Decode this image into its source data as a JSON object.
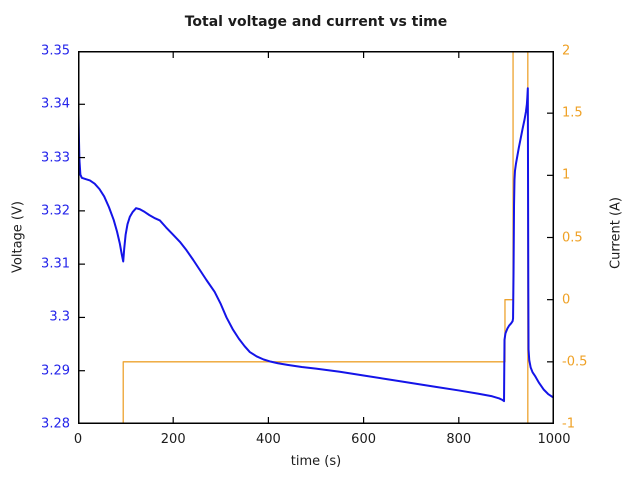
{
  "chart_data": {
    "type": "line",
    "title": "Total voltage and current vs time",
    "xlabel": "time (s)",
    "ylabel_left": "Voltage (V)",
    "ylabel_right": "Current (A)",
    "x_range": [
      0,
      1000
    ],
    "y_left_range": [
      3.28,
      3.35
    ],
    "y_right_range": [
      -1,
      2
    ],
    "grid": false,
    "legend": "none",
    "colors": {
      "voltage_line": "#1414e8",
      "voltage_labels": "#2424ea",
      "current_line": "#eda32f",
      "current_labels": "#efa125",
      "axis_frame": "#000000",
      "text": "#1c1c1c"
    },
    "x_ticks": [
      {
        "v": 0,
        "label": "0"
      },
      {
        "v": 200,
        "label": "200"
      },
      {
        "v": 400,
        "label": "400"
      },
      {
        "v": 600,
        "label": "600"
      },
      {
        "v": 800,
        "label": "800"
      },
      {
        "v": 1000,
        "label": "1000"
      }
    ],
    "y_left_ticks": [
      {
        "v": 3.35,
        "label": "3.35"
      },
      {
        "v": 3.34,
        "label": "3.34"
      },
      {
        "v": 3.33,
        "label": "3.33"
      },
      {
        "v": 3.32,
        "label": "3.32"
      },
      {
        "v": 3.31,
        "label": "3.31"
      },
      {
        "v": 3.3,
        "label": "3.3"
      },
      {
        "v": 3.29,
        "label": "3.29"
      },
      {
        "v": 3.28,
        "label": "3.28"
      }
    ],
    "y_right_ticks": [
      {
        "v": 2,
        "label": "2"
      },
      {
        "v": 1.5,
        "label": "1.5"
      },
      {
        "v": 1,
        "label": "1"
      },
      {
        "v": 0.5,
        "label": "0.5"
      },
      {
        "v": 0,
        "label": "0"
      },
      {
        "v": -0.5,
        "label": "-0.5"
      },
      {
        "v": -1,
        "label": "-1"
      }
    ],
    "series": [
      {
        "name": "current",
        "axis": "right",
        "color": "#eda32f",
        "width": 1.3,
        "points": [
          [
            0,
            -1
          ],
          [
            95,
            -1
          ],
          [
            95,
            -0.5
          ],
          [
            897,
            -0.5
          ],
          [
            897,
            0
          ],
          [
            914,
            0
          ],
          [
            914,
            2
          ],
          [
            945,
            2
          ],
          [
            945,
            -1
          ],
          [
            1000,
            -1
          ]
        ]
      },
      {
        "name": "voltage",
        "axis": "left",
        "color": "#1414e8",
        "width": 2,
        "points": [
          [
            0,
            3.342
          ],
          [
            1,
            3.3385
          ],
          [
            2,
            3.3335
          ],
          [
            3,
            3.3295
          ],
          [
            5,
            3.3268
          ],
          [
            8,
            3.3262
          ],
          [
            15,
            3.326
          ],
          [
            25,
            3.3257
          ],
          [
            35,
            3.3251
          ],
          [
            45,
            3.3241
          ],
          [
            55,
            3.3227
          ],
          [
            65,
            3.3207
          ],
          [
            75,
            3.3183
          ],
          [
            82,
            3.3161
          ],
          [
            88,
            3.3138
          ],
          [
            92,
            3.3118
          ],
          [
            95,
            3.3105
          ],
          [
            97,
            3.3128
          ],
          [
            100,
            3.3155
          ],
          [
            104,
            3.3175
          ],
          [
            109,
            3.3189
          ],
          [
            115,
            3.3198
          ],
          [
            122,
            3.3205
          ],
          [
            130,
            3.3203
          ],
          [
            140,
            3.3198
          ],
          [
            150,
            3.3192
          ],
          [
            162,
            3.3186
          ],
          [
            172,
            3.3182
          ],
          [
            185,
            3.3169
          ],
          [
            200,
            3.3155
          ],
          [
            214,
            3.3142
          ],
          [
            228,
            3.3126
          ],
          [
            242,
            3.3108
          ],
          [
            256,
            3.3089
          ],
          [
            270,
            3.307
          ],
          [
            287,
            3.3048
          ],
          [
            300,
            3.3025
          ],
          [
            312,
            3.3
          ],
          [
            325,
            3.2978
          ],
          [
            338,
            3.296
          ],
          [
            350,
            3.2946
          ],
          [
            361,
            3.2935
          ],
          [
            375,
            3.2927
          ],
          [
            390,
            3.2921
          ],
          [
            405,
            3.2917
          ],
          [
            420,
            3.2914
          ],
          [
            440,
            3.2911
          ],
          [
            470,
            3.2907
          ],
          [
            500,
            3.2904
          ],
          [
            550,
            3.2898
          ],
          [
            600,
            3.2891
          ],
          [
            650,
            3.2884
          ],
          [
            700,
            3.2877
          ],
          [
            750,
            3.287
          ],
          [
            800,
            3.2863
          ],
          [
            840,
            3.2857
          ],
          [
            870,
            3.2852
          ],
          [
            885,
            3.2848
          ],
          [
            892,
            3.2845
          ],
          [
            895,
            3.2843
          ],
          [
            896,
            3.2958
          ],
          [
            898,
            3.297
          ],
          [
            902,
            3.2979
          ],
          [
            906,
            3.2985
          ],
          [
            910,
            3.2989
          ],
          [
            913,
            3.2993
          ],
          [
            914,
            3.2998
          ],
          [
            915,
            3.3085
          ],
          [
            916,
            3.321
          ],
          [
            917,
            3.3258
          ],
          [
            918,
            3.3275
          ],
          [
            920,
            3.3288
          ],
          [
            923,
            3.3303
          ],
          [
            926,
            3.3318
          ],
          [
            930,
            3.3336
          ],
          [
            934,
            3.3354
          ],
          [
            938,
            3.3371
          ],
          [
            941,
            3.3386
          ],
          [
            943,
            3.34
          ],
          [
            944,
            3.3413
          ],
          [
            945,
            3.343
          ],
          [
            946,
            3.3055
          ],
          [
            946.5,
            3.294
          ],
          [
            948,
            3.292
          ],
          [
            951,
            3.2906
          ],
          [
            955,
            3.2897
          ],
          [
            961,
            3.2889
          ],
          [
            968,
            3.2878
          ],
          [
            978,
            3.2865
          ],
          [
            988,
            3.2856
          ],
          [
            1000,
            3.2849
          ]
        ]
      }
    ]
  }
}
